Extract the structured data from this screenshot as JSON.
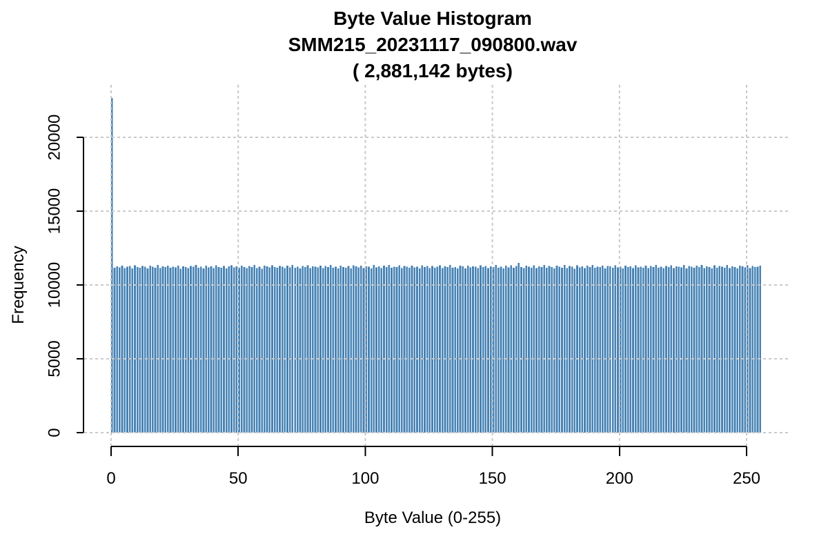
{
  "title": {
    "line1": "Byte Value Histogram",
    "line2": "SMM215_20231117_090800.wav",
    "line3": "( 2,881,142 bytes)"
  },
  "axes": {
    "x": {
      "label": "Byte Value (0-255)",
      "ticks": [
        0,
        50,
        100,
        150,
        200,
        250
      ]
    },
    "y": {
      "label": "Frequency",
      "ticks": [
        0,
        5000,
        10000,
        15000,
        20000
      ]
    }
  },
  "colors": {
    "bar": "#4682B4",
    "grid": "#C9C9C9",
    "axis": "#000000",
    "text": "#000000",
    "background": "#FFFFFF"
  },
  "chart_data": {
    "type": "bar",
    "subtype": "histogram",
    "title": "Byte Value Histogram SMM215_20231117_090800.wav ( 2,881,142 bytes)",
    "xlabel": "Byte Value (0-255)",
    "ylabel": "Frequency",
    "bin_start": 0,
    "bin_width": 1,
    "n_bins": 256,
    "xlim": [
      0,
      256
    ],
    "ylim": [
      0,
      22700
    ],
    "xticks": [
      0,
      50,
      100,
      150,
      200,
      250
    ],
    "yticks": [
      0,
      5000,
      10000,
      15000,
      20000
    ],
    "grid": true,
    "legend": false,
    "values": [
      22664,
      11172,
      11265,
      11188,
      11302,
      11150,
      11240,
      11275,
      11118,
      11330,
      11205,
      11162,
      11288,
      11235,
      11120,
      11310,
      11250,
      11180,
      11345,
      11140,
      11260,
      11220,
      11300,
      11165,
      11235,
      11190,
      11320,
      11105,
      11270,
      11215,
      11155,
      11295,
      11230,
      11350,
      11170,
      11245,
      11130,
      11305,
      11200,
      11260,
      11145,
      11325,
      11210,
      11180,
      11290,
      11125,
      11265,
      11340,
      11195,
      11255,
      11160,
      11315,
      11225,
      11135,
      11285,
      11205,
      11355,
      11150,
      11240,
      11110,
      11300,
      11270,
      11185,
      11330,
      11220,
      11165,
      11295,
      11235,
      11145,
      11310,
      11200,
      11360,
      11175,
      11250,
      11120,
      11285,
      11215,
      11340,
      11155,
      11265,
      11230,
      11190,
      11320,
      11140,
      11275,
      11210,
      11350,
      11160,
      11245,
      11130,
      11305,
      11225,
      11170,
      11290,
      11115,
      11335,
      11255,
      11200,
      11315,
      11150,
      11270,
      11235,
      11125,
      11345,
      11185,
      11260,
      11145,
      11300,
      11220,
      11355,
      11165,
      11240,
      11205,
      11325,
      11135,
      11280,
      11250,
      11160,
      11310,
      11195,
      11230,
      11120,
      11340,
      11215,
      11275,
      11150,
      11295,
      11180,
      11245,
      11330,
      11140,
      11265,
      11205,
      11350,
      11170,
      11225,
      11130,
      11300,
      11255,
      11115,
      11320,
      11190,
      11270,
      11235,
      11155,
      11340,
      11210,
      11285,
      11145,
      11260,
      11220,
      11355,
      11175,
      11240,
      11125,
      11305,
      11200,
      11330,
      11160,
      11280,
      11497,
      11215,
      11145,
      11310,
      11250,
      11180,
      11335,
      11135,
      11265,
      11225,
      11350,
      11165,
      11290,
      11205,
      11120,
      11315,
      11240,
      11175,
      11345,
      11150,
      11275,
      11230,
      11110,
      11325,
      11195,
      11260,
      11140,
      11300,
      11215,
      11355,
      11170,
      11245,
      11210,
      11320,
      11130,
      11285,
      11255,
      11160,
      11340,
      11185,
      11235,
      11125,
      11305,
      11220,
      11270,
      11150,
      11330,
      11200,
      11250,
      11165,
      11315,
      11140,
      11280,
      11225,
      11360,
      11175,
      11245,
      11135,
      11295,
      11210,
      11340,
      11155,
      11265,
      11230,
      11190,
      11350,
      11120,
      11275,
      11240,
      11160,
      11310,
      11205,
      11355,
      11145,
      11260,
      11215,
      11130,
      11325,
      11180,
      11290,
      11235,
      11170,
      11345,
      11150,
      11270,
      11220,
      11115,
      11300,
      11255,
      11195,
      11335,
      11140,
      11285,
      11210,
      11250,
      11320
    ]
  }
}
